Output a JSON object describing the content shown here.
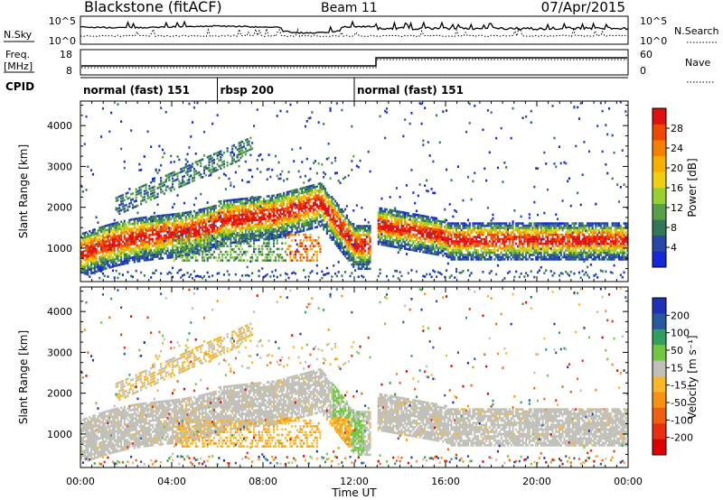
{
  "header": {
    "station": "Blackstone (fitACF)",
    "beam": "Beam 11",
    "date": "07/Apr/2015"
  },
  "noise_panel": {
    "left_label": "N.Sky",
    "right_label": "N.Search",
    "left_ticks": [
      "10^5",
      "10^0"
    ],
    "right_ticks": [
      "10^5",
      "10^0"
    ]
  },
  "freq_panel": {
    "left_label_1": "Freq.",
    "left_label_2": "[MHz]",
    "right_label": "Nave",
    "left_ticks": [
      "18",
      "8"
    ],
    "right_ticks": [
      "60",
      "0"
    ]
  },
  "cpid": {
    "label": "CPID",
    "segments": [
      {
        "start_hour": 0,
        "end_hour": 6,
        "text": "normal (fast) 151"
      },
      {
        "start_hour": 6,
        "end_hour": 12,
        "text": "rbsp 200"
      },
      {
        "start_hour": 12,
        "end_hour": 24,
        "text": "normal (fast) 151"
      }
    ]
  },
  "chart_data": [
    {
      "type": "heatmap",
      "name": "power",
      "ylabel": "Slant Range [km]",
      "ylim": [
        180,
        4600
      ],
      "y_ticks": [
        "1000",
        "2000",
        "3000",
        "4000"
      ],
      "colorbar_label": "Power [dB]",
      "colorbar_ticks": [
        "4",
        "8",
        "12",
        "16",
        "20",
        "24",
        "28"
      ],
      "colorbar_colors": [
        "#1428d8",
        "#2848a8",
        "#307858",
        "#58a048",
        "#98d030",
        "#f0d010",
        "#f8b000",
        "#f88000",
        "#f04800",
        "#e01010"
      ]
    },
    {
      "type": "heatmap",
      "name": "velocity",
      "ylabel": "Slant Range [km]",
      "xlabel": "Time UT",
      "ylim": [
        180,
        4600
      ],
      "y_ticks": [
        "1000",
        "2000",
        "3000",
        "4000"
      ],
      "x_ticks": [
        "00:00",
        "04:00",
        "08:00",
        "12:00",
        "16:00",
        "20:00",
        "00:00"
      ],
      "colorbar_label": "Velocity [m s⁻¹]",
      "colorbar_ticks": [
        "200",
        "100",
        "50",
        "15",
        "-15",
        "-50",
        "-100",
        "-200"
      ],
      "colorbar_colors": [
        "#2030b8",
        "#2858a0",
        "#30a060",
        "#70c840",
        "#c0c0b8",
        "#f8b828",
        "#f89010",
        "#f06010",
        "#e83010",
        "#e00000"
      ]
    }
  ]
}
